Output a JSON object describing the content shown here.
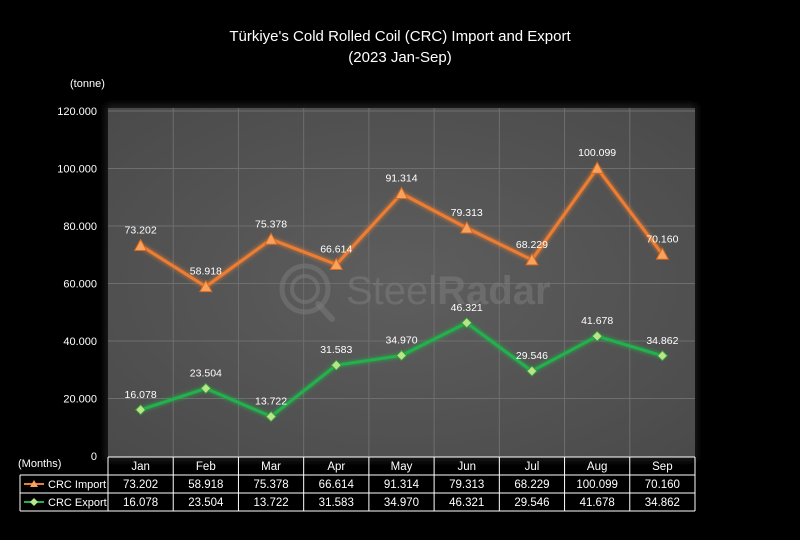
{
  "chart_data": {
    "type": "line",
    "title": "Türkiye's Cold Rolled Coil (CRC) Import and Export",
    "subtitle": "(2023 Jan-Sep)",
    "ylabel": "(tonne)",
    "xlabel": "(Months)",
    "ylim": [
      0,
      120000
    ],
    "yticks": [
      {
        "value": 0,
        "label": "0"
      },
      {
        "value": 20000,
        "label": "20.000"
      },
      {
        "value": 40000,
        "label": "40.000"
      },
      {
        "value": 60000,
        "label": "60.000"
      },
      {
        "value": 80000,
        "label": "80.000"
      },
      {
        "value": 100000,
        "label": "100.000"
      },
      {
        "value": 120000,
        "label": "120.000"
      }
    ],
    "categories": [
      "Jan",
      "Feb",
      "Mar",
      "Apr",
      "May",
      "Jun",
      "Jul",
      "Aug",
      "Sep"
    ],
    "series": [
      {
        "name": "CRC Import",
        "color": "#ed7d31",
        "marker": "triangle",
        "values": [
          73202,
          58918,
          75378,
          66614,
          91314,
          79313,
          68229,
          100099,
          70160
        ],
        "labels": [
          "73.202",
          "58.918",
          "75.378",
          "66.614",
          "91.314",
          "79.313",
          "68.229",
          "100.099",
          "70.160"
        ]
      },
      {
        "name": "CRC Export",
        "color": "#22b14c",
        "marker": "diamond",
        "values": [
          16078,
          23504,
          13722,
          31583,
          34970,
          46321,
          29546,
          41678,
          34862
        ],
        "labels": [
          "16.078",
          "23.504",
          "13.722",
          "31.583",
          "34.970",
          "46.321",
          "29.546",
          "41.678",
          "34.862"
        ]
      }
    ],
    "grid": true,
    "data_table": true,
    "plot_background": "#595959"
  },
  "watermark": {
    "brand_part1": "Steel",
    "brand_part2": "Radar"
  }
}
